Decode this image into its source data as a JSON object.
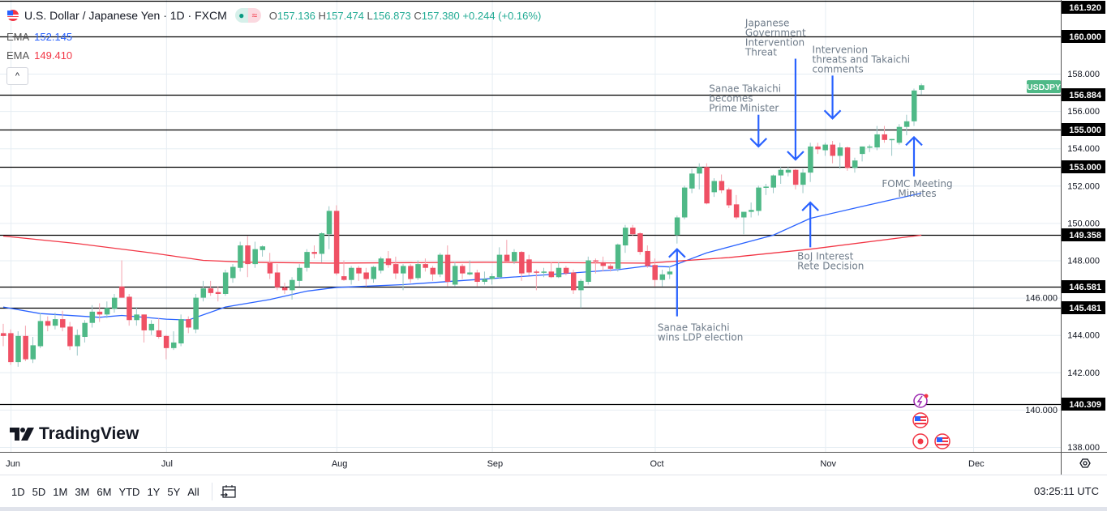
{
  "header": {
    "symbol_title": "U.S. Dollar / Japanese Yen · 1D · FXCM",
    "open_label": "O",
    "open": "157.136",
    "high_label": "H",
    "high": "157.474",
    "low_label": "L",
    "low": "156.873",
    "close_label": "C",
    "close": "157.380",
    "change": "+0.244 (+0.16%)",
    "status_icons": [
      "market-open-dot-icon",
      "delayed-data-icon"
    ]
  },
  "indicators": [
    {
      "label": "EMA",
      "value": "152.145",
      "color": "#2962ff"
    },
    {
      "label": "EMA",
      "value": "149.410",
      "color": "#f23645"
    }
  ],
  "collapse_glyph": "^",
  "logo_text": "TradingView",
  "symbol_tag": "USDJPY",
  "colors": {
    "up": "#4fb987",
    "down": "#ef5064",
    "grid": "#e6edf3",
    "level": "#000000",
    "arrow": "#2962ff",
    "annotation": "#6f7c8a"
  },
  "chart_data": {
    "type": "candlestick",
    "symbol": "USDJPY",
    "interval": "1D",
    "x_tick_labels": [
      "Jun",
      "Jul",
      "Aug",
      "Sep",
      "Oct",
      "Nov",
      "Dec"
    ],
    "x_tick_bars": [
      1,
      22,
      45,
      66,
      88,
      111,
      131
    ],
    "y_ticks": [
      "158.000",
      "156.000",
      "154.000",
      "152.000",
      "150.000",
      "148.000",
      "146.000",
      "144.000",
      "142.000",
      "140.000",
      "138.000"
    ],
    "y_tick_values": [
      158,
      156,
      154,
      152,
      150,
      148,
      146,
      144,
      142,
      140,
      138
    ],
    "ylim": [
      137.5,
      162.5
    ],
    "grid": true,
    "ohlc": [
      [
        144.1,
        144.6,
        143.4,
        143.95
      ],
      [
        144.1,
        144.3,
        142.4,
        142.55
      ],
      [
        142.55,
        144.2,
        142.3,
        143.95
      ],
      [
        143.95,
        144.5,
        142.6,
        142.7
      ],
      [
        142.7,
        143.9,
        142.5,
        143.45
      ],
      [
        143.4,
        145.2,
        143.3,
        144.75
      ],
      [
        144.75,
        145.0,
        144.2,
        144.5
      ],
      [
        144.5,
        145.2,
        144.3,
        144.85
      ],
      [
        144.85,
        145.3,
        144.2,
        144.4
      ],
      [
        144.45,
        144.7,
        143.2,
        143.4
      ],
      [
        143.4,
        144.3,
        142.9,
        144.0
      ],
      [
        143.9,
        144.8,
        143.6,
        144.65
      ],
      [
        144.65,
        145.6,
        144.4,
        145.25
      ],
      [
        145.25,
        145.7,
        144.7,
        145.1
      ],
      [
        145.1,
        145.8,
        144.9,
        145.45
      ],
      [
        145.4,
        146.2,
        145.2,
        146.0
      ],
      [
        146.6,
        148.0,
        146.0,
        146.0
      ],
      [
        146.05,
        146.2,
        144.5,
        144.8
      ],
      [
        144.8,
        145.5,
        144.5,
        145.1
      ],
      [
        145.1,
        145.1,
        143.6,
        144.25
      ],
      [
        144.25,
        144.8,
        144.0,
        144.6
      ],
      [
        144.25,
        144.9,
        143.8,
        143.9
      ],
      [
        143.95,
        144.0,
        142.7,
        143.3
      ],
      [
        143.3,
        144.2,
        143.2,
        143.6
      ],
      [
        143.55,
        145.1,
        143.4,
        144.85
      ],
      [
        144.85,
        145.0,
        144.1,
        144.4
      ],
      [
        144.3,
        146.2,
        144.1,
        146.0
      ],
      [
        146.0,
        146.9,
        145.8,
        146.5
      ],
      [
        146.5,
        146.9,
        146.1,
        146.25
      ],
      [
        146.3,
        146.6,
        145.8,
        146.2
      ],
      [
        146.2,
        147.5,
        146.1,
        147.35
      ],
      [
        147.05,
        147.8,
        146.8,
        147.65
      ],
      [
        147.6,
        149.0,
        147.4,
        148.8
      ],
      [
        148.8,
        149.3,
        147.1,
        147.8
      ],
      [
        147.8,
        149.0,
        147.6,
        148.6
      ],
      [
        148.55,
        148.8,
        148.2,
        148.75
      ],
      [
        147.85,
        148.4,
        147.0,
        147.3
      ],
      [
        147.35,
        147.8,
        146.4,
        146.55
      ],
      [
        146.55,
        146.8,
        146.2,
        146.4
      ],
      [
        146.4,
        147.1,
        145.9,
        146.95
      ],
      [
        146.9,
        147.8,
        146.6,
        147.6
      ],
      [
        147.6,
        148.6,
        147.4,
        148.45
      ],
      [
        148.45,
        148.8,
        148.1,
        148.35
      ],
      [
        148.35,
        149.5,
        147.9,
        149.45
      ],
      [
        149.4,
        150.9,
        148.6,
        150.65
      ],
      [
        150.65,
        150.95,
        147.2,
        147.3
      ],
      [
        147.15,
        148.0,
        146.9,
        146.95
      ],
      [
        146.95,
        147.7,
        146.7,
        147.6
      ],
      [
        147.6,
        147.7,
        146.9,
        147.3
      ],
      [
        147.35,
        147.6,
        146.6,
        147.0
      ],
      [
        147.0,
        147.7,
        146.8,
        147.65
      ],
      [
        147.45,
        148.2,
        147.3,
        148.1
      ],
      [
        148.1,
        148.5,
        147.6,
        147.75
      ],
      [
        147.8,
        148.2,
        147.0,
        147.3
      ],
      [
        147.3,
        147.8,
        146.4,
        147.7
      ],
      [
        147.7,
        147.8,
        146.8,
        147.0
      ],
      [
        147.05,
        148.0,
        146.95,
        147.8
      ],
      [
        147.8,
        148.1,
        147.4,
        147.6
      ],
      [
        147.6,
        147.7,
        146.9,
        147.25
      ],
      [
        147.25,
        148.4,
        147.1,
        148.3
      ],
      [
        148.3,
        148.8,
        146.6,
        146.85
      ],
      [
        146.7,
        147.9,
        146.6,
        147.7
      ],
      [
        147.7,
        147.8,
        147.0,
        147.3
      ],
      [
        147.25,
        148.0,
        147.2,
        147.35
      ],
      [
        147.35,
        147.5,
        146.6,
        146.85
      ],
      [
        146.85,
        147.4,
        146.7,
        147.0
      ],
      [
        147.0,
        147.3,
        146.7,
        147.15
      ],
      [
        147.1,
        148.7,
        147.0,
        148.3
      ],
      [
        148.3,
        149.1,
        147.9,
        147.95
      ],
      [
        147.95,
        148.6,
        147.8,
        148.45
      ],
      [
        148.45,
        148.5,
        146.9,
        147.3
      ],
      [
        148.05,
        148.3,
        147.2,
        147.35
      ],
      [
        147.4,
        147.5,
        146.4,
        147.35
      ],
      [
        147.35,
        147.6,
        147.1,
        147.4
      ],
      [
        147.4,
        147.9,
        147.05,
        147.1
      ],
      [
        147.1,
        147.9,
        147.05,
        147.6
      ],
      [
        147.6,
        147.7,
        147.2,
        147.3
      ],
      [
        147.35,
        147.5,
        146.2,
        146.4
      ],
      [
        146.4,
        147.0,
        145.45,
        146.9
      ],
      [
        146.85,
        148.2,
        146.7,
        148.0
      ],
      [
        148.0,
        148.1,
        147.3,
        147.98
      ],
      [
        147.9,
        148.2,
        147.4,
        147.7
      ],
      [
        147.7,
        147.8,
        147.4,
        147.55
      ],
      [
        147.55,
        148.9,
        147.4,
        148.85
      ],
      [
        148.8,
        149.9,
        148.4,
        149.75
      ],
      [
        149.75,
        149.9,
        149.3,
        149.4
      ],
      [
        149.45,
        149.5,
        148.3,
        148.45
      ],
      [
        148.5,
        148.8,
        147.6,
        147.7
      ],
      [
        147.75,
        148.1,
        146.6,
        146.95
      ],
      [
        146.95,
        147.5,
        146.6,
        147.25
      ],
      [
        147.25,
        147.7,
        147.0,
        147.4
      ],
      [
        149.35,
        150.4,
        148.9,
        150.3
      ],
      [
        150.3,
        152.0,
        150.2,
        151.9
      ],
      [
        151.85,
        152.9,
        151.6,
        152.65
      ],
      [
        152.65,
        153.2,
        151.8,
        153.0
      ],
      [
        153.0,
        153.2,
        151.0,
        151.05
      ],
      [
        151.65,
        152.4,
        151.4,
        152.25
      ],
      [
        152.25,
        152.6,
        151.6,
        151.75
      ],
      [
        151.8,
        151.9,
        150.8,
        150.95
      ],
      [
        151.0,
        151.5,
        150.2,
        150.3
      ],
      [
        150.3,
        150.6,
        149.4,
        150.6
      ],
      [
        150.6,
        151.1,
        150.3,
        150.7
      ],
      [
        150.65,
        152.0,
        150.4,
        151.9
      ],
      [
        151.9,
        152.1,
        151.5,
        151.95
      ],
      [
        151.9,
        152.6,
        151.6,
        152.55
      ],
      [
        152.55,
        153.0,
        152.1,
        152.85
      ],
      [
        152.7,
        153.0,
        152.5,
        152.85
      ],
      [
        152.85,
        152.9,
        151.8,
        152.05
      ],
      [
        152.05,
        152.9,
        151.6,
        152.7
      ],
      [
        152.7,
        154.3,
        152.2,
        154.1
      ],
      [
        154.1,
        154.3,
        153.7,
        153.95
      ],
      [
        153.9,
        154.3,
        153.6,
        154.2
      ],
      [
        154.2,
        154.4,
        153.2,
        153.6
      ],
      [
        153.6,
        154.3,
        152.9,
        154.05
      ],
      [
        154.05,
        154.1,
        152.8,
        152.95
      ],
      [
        152.95,
        153.5,
        152.7,
        153.35
      ],
      [
        153.7,
        154.1,
        153.3,
        154.1
      ],
      [
        154.05,
        154.2,
        153.8,
        154.1
      ],
      [
        154.05,
        155.2,
        153.9,
        154.75
      ],
      [
        154.75,
        155.2,
        154.3,
        154.45
      ],
      [
        154.45,
        154.5,
        153.6,
        154.5
      ],
      [
        154.3,
        155.3,
        154.2,
        155.15
      ],
      [
        155.15,
        155.8,
        154.7,
        155.45
      ],
      [
        155.45,
        157.2,
        155.2,
        157.1
      ],
      [
        157.136,
        157.474,
        156.873,
        157.38
      ]
    ],
    "ema_fast": {
      "color": "#2962ff",
      "points": [
        [
          0,
          145.5
        ],
        [
          5,
          145.15
        ],
        [
          13,
          144.95
        ],
        [
          16,
          145.05
        ],
        [
          22,
          144.85
        ],
        [
          25,
          144.8
        ],
        [
          30,
          145.5
        ],
        [
          36,
          145.9
        ],
        [
          41,
          146.35
        ],
        [
          45,
          146.55
        ],
        [
          54,
          146.7
        ],
        [
          65,
          147.0
        ],
        [
          76,
          147.3
        ],
        [
          83,
          147.5
        ],
        [
          87,
          147.7
        ],
        [
          90,
          147.65
        ],
        [
          95,
          148.4
        ],
        [
          104,
          149.35
        ],
        [
          109,
          150.25
        ],
        [
          115,
          150.8
        ],
        [
          120,
          151.25
        ],
        [
          124,
          151.6
        ]
      ]
    },
    "ema_slow": {
      "color": "#f23645",
      "points": [
        [
          0,
          149.3
        ],
        [
          10,
          148.9
        ],
        [
          20,
          148.4
        ],
        [
          27,
          148.0
        ],
        [
          33,
          147.9
        ],
        [
          44,
          147.85
        ],
        [
          65,
          147.9
        ],
        [
          87,
          147.85
        ],
        [
          98,
          148.15
        ],
        [
          109,
          148.6
        ],
        [
          124,
          149.35
        ]
      ]
    },
    "levels": [
      {
        "value": 161.92,
        "label": "161.920"
      },
      {
        "value": 160.0,
        "label": "160.000"
      },
      {
        "value": 156.884,
        "label": "156.884"
      },
      {
        "value": 155.0,
        "label": "155.000"
      },
      {
        "value": 153.0,
        "label": "153.000"
      },
      {
        "value": 149.358,
        "label": "149.358"
      },
      {
        "value": 146.581,
        "label": "146.581"
      },
      {
        "value": 145.481,
        "label": "145.481"
      },
      {
        "value": 140.309,
        "label": "140.309"
      }
    ],
    "annotations": [
      {
        "lines": [
          "Japanese",
          "Government",
          "Intervention",
          "Threat"
        ],
        "bar": 107,
        "direction": "down",
        "from": 158.8,
        "to": 153.4
      },
      {
        "lines": [
          "Intervenion",
          "threats and Takaichi",
          "comments"
        ],
        "bar": 112,
        "direction": "down",
        "from": 157.9,
        "to": 155.6
      },
      {
        "lines": [
          "Sanae Takaichi",
          "becomes",
          "Prime Minister"
        ],
        "bar": 102,
        "direction": "down",
        "from": 155.8,
        "to": 154.1
      },
      {
        "lines": [
          "FOMC Meeting",
          "Minutes"
        ],
        "bar": 123,
        "direction": "up",
        "from": 152.5,
        "to": 154.6
      },
      {
        "lines": [
          "BoJ Interest",
          "Rete Decision"
        ],
        "bar": 109,
        "direction": "up",
        "from": 148.7,
        "to": 151.1
      },
      {
        "lines": [
          "Sanae Takaichi",
          "wins LDP election"
        ],
        "bar": 91,
        "direction": "up",
        "from": 145.0,
        "to": 148.6
      }
    ]
  },
  "event_icons": [
    "lightning-event-icon",
    "us-flag-event-icon",
    "red-dot-event-icon",
    "us-flag-event-icon"
  ],
  "axis_settings_icon": "gear-icon",
  "toolbar": {
    "ranges": [
      "1D",
      "5D",
      "1M",
      "3M",
      "6M",
      "YTD",
      "1Y",
      "5Y",
      "All"
    ],
    "date_range_icon": "calendar-goto-icon",
    "clock": "03:25:11 UTC"
  }
}
